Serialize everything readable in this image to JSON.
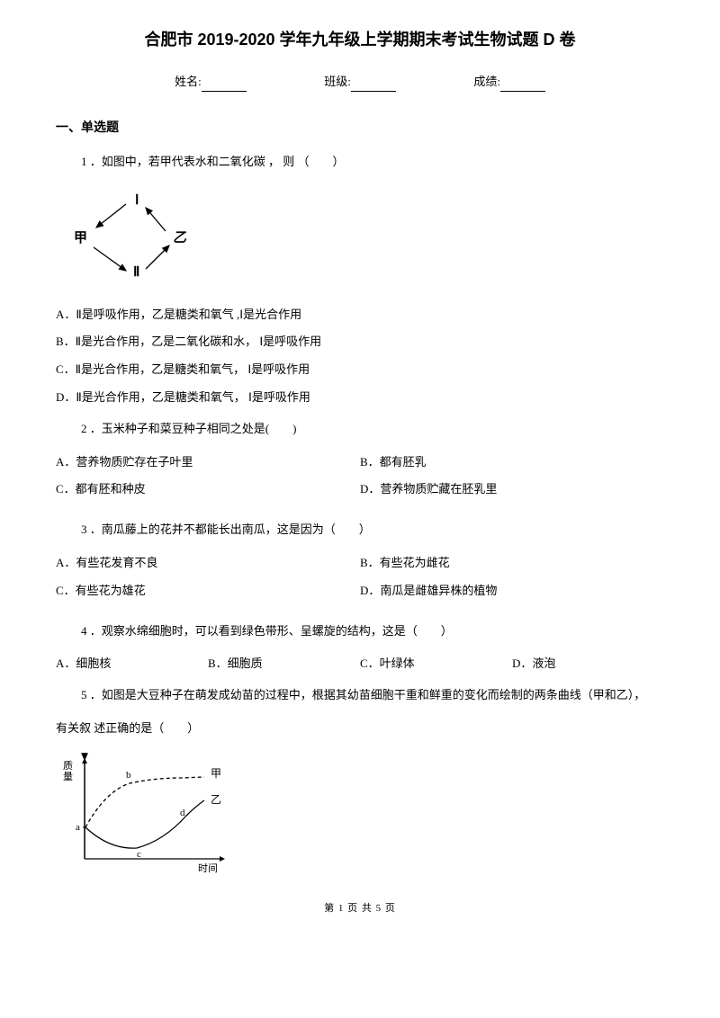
{
  "title": "合肥市 2019-2020 学年九年级上学期期末考试生物试题 D 卷",
  "info": {
    "name_label": "姓名:",
    "class_label": "班级:",
    "score_label": "成绩:"
  },
  "section1_heading": "一、单选题",
  "q1": {
    "text": "1 ．如图中，若甲代表水和二氧化碳 ， 则 （　　）",
    "diagram": {
      "node_top": "Ⅰ",
      "node_left": "甲",
      "node_right": "乙",
      "node_bottom": "Ⅱ",
      "stroke": "#000000",
      "font_family": "SimHei"
    },
    "opts": {
      "a": "A．Ⅱ是呼吸作用，乙是糖类和氧气 ,Ⅰ是光合作用",
      "b": "B．Ⅱ是光合作用，乙是二氧化碳和水， Ⅰ是呼吸作用",
      "c": "C．Ⅱ是光合作用，乙是糖类和氧气， Ⅰ是呼吸作用",
      "d": "D．Ⅱ是光合作用，乙是糖类和氧气， Ⅰ是呼吸作用"
    }
  },
  "q2": {
    "text": "2 ．玉米种子和菜豆种子相同之处是(　　)",
    "opts": {
      "a": "A．营养物质贮存在子叶里",
      "b": "B．都有胚乳",
      "c": "C．都有胚和种皮",
      "d": "D．营养物质贮藏在胚乳里"
    }
  },
  "q3": {
    "text": "3 ．南瓜藤上的花并不都能长出南瓜，这是因为（　　）",
    "opts": {
      "a": "A．有些花发育不良",
      "b": "B．有些花为雌花",
      "c": "C．有些花为雄花",
      "d": "D．南瓜是雌雄异株的植物"
    }
  },
  "q4": {
    "text": "4 ．观察水绵细胞时，可以看到绿色带形、呈螺旋的结构，这是（　　）",
    "opts": {
      "a": "A．细胞核",
      "b": "B．细胞质",
      "c": "C．叶绿体",
      "d": "D．液泡"
    }
  },
  "q5": {
    "text_part1": "5 ．如图是大豆种子在萌发成幼苗的过程中，根据其幼苗细胞干重和鲜重的变化而绘制的两条曲线（甲和乙），",
    "text_part2": "有关叙 述正确的是（　　）",
    "chart": {
      "y_label": "质量",
      "x_label": "时间",
      "series1_label": "甲",
      "series2_label": "乙",
      "point_a": "a",
      "point_b": "b",
      "point_c": "c",
      "point_d": "d",
      "stroke": "#000000",
      "bg": "#ffffff",
      "dash": "3,3"
    }
  },
  "footer": "第 1 页 共 5 页"
}
